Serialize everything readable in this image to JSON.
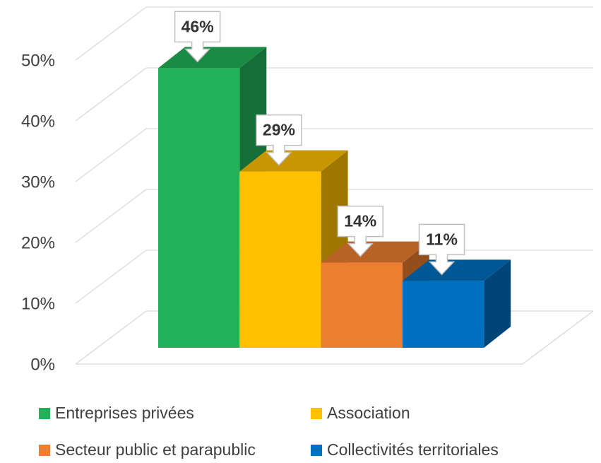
{
  "chart_data": {
    "type": "bar3d",
    "categories": [
      "Entreprises privées",
      "Association",
      "Secteur public et parapublic",
      "Collectivités territoriales"
    ],
    "values": [
      46,
      29,
      14,
      11
    ],
    "value_labels": [
      "46%",
      "29%",
      "14%",
      "11%"
    ],
    "colors": [
      "#22b159",
      "#ffc000",
      "#ed7d31",
      "#0070c0"
    ],
    "ylim": [
      0,
      50
    ],
    "yticks": [
      {
        "value": 0,
        "label": "0%"
      },
      {
        "value": 10,
        "label": "10%"
      },
      {
        "value": 20,
        "label": "20%"
      },
      {
        "value": 30,
        "label": "30%"
      },
      {
        "value": 40,
        "label": "40%"
      },
      {
        "value": 50,
        "label": "50%"
      }
    ],
    "grid": true
  }
}
